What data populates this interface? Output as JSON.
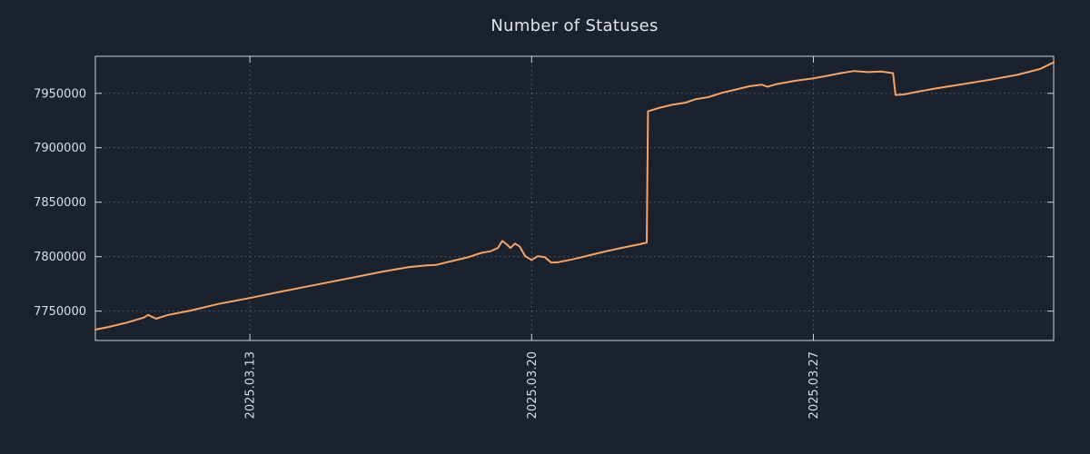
{
  "chart_data": {
    "type": "line",
    "title": "Number of Statuses",
    "background": "#1b222e",
    "text_color": "#d9dee5",
    "grid_color": "#9aa3ad",
    "border_color": "#ccd2da",
    "legend": "none",
    "grid": "dotted",
    "x_range": [
      0,
      23.81
    ],
    "y_range": [
      7723000,
      7984000
    ],
    "x_ticks": [
      {
        "label": "2025.03.13",
        "x": 3.84
      },
      {
        "label": "2025.03.20",
        "x": 10.84
      },
      {
        "label": "2025.03.27",
        "x": 17.84
      }
    ],
    "y_ticks": [
      {
        "label": "7750000",
        "value": 7750000
      },
      {
        "label": "7800000",
        "value": 7800000
      },
      {
        "label": "7850000",
        "value": 7850000
      },
      {
        "label": "7900000",
        "value": 7900000
      },
      {
        "label": "7950000",
        "value": 7950000
      }
    ],
    "series": [
      {
        "name": "Number of Statuses",
        "color": "#f2a46a",
        "points": [
          [
            0.0,
            7733000
          ],
          [
            0.34,
            7735500
          ],
          [
            0.79,
            7739500
          ],
          [
            1.2,
            7744000
          ],
          [
            1.31,
            7746500
          ],
          [
            1.51,
            7743000
          ],
          [
            1.81,
            7746500
          ],
          [
            2.37,
            7750500
          ],
          [
            3.05,
            7756500
          ],
          [
            3.84,
            7762000
          ],
          [
            4.63,
            7768000
          ],
          [
            5.53,
            7774500
          ],
          [
            6.43,
            7781000
          ],
          [
            7.11,
            7786000
          ],
          [
            7.79,
            7790500
          ],
          [
            8.24,
            7792000
          ],
          [
            8.47,
            7792500
          ],
          [
            8.92,
            7796500
          ],
          [
            9.26,
            7799500
          ],
          [
            9.59,
            7803500
          ],
          [
            9.82,
            7805000
          ],
          [
            10.0,
            7808000
          ],
          [
            10.11,
            7814500
          ],
          [
            10.23,
            7811000
          ],
          [
            10.31,
            7808000
          ],
          [
            10.43,
            7812000
          ],
          [
            10.54,
            7809500
          ],
          [
            10.68,
            7800500
          ],
          [
            10.84,
            7797000
          ],
          [
            10.99,
            7800500
          ],
          [
            11.17,
            7799500
          ],
          [
            11.33,
            7794500
          ],
          [
            11.51,
            7795000
          ],
          [
            11.85,
            7797500
          ],
          [
            12.3,
            7801500
          ],
          [
            12.75,
            7805500
          ],
          [
            13.2,
            7809000
          ],
          [
            13.54,
            7811500
          ],
          [
            13.7,
            7813000
          ],
          [
            13.73,
            7933500
          ],
          [
            13.99,
            7936500
          ],
          [
            14.33,
            7939500
          ],
          [
            14.67,
            7941500
          ],
          [
            14.9,
            7944500
          ],
          [
            15.23,
            7946500
          ],
          [
            15.57,
            7950500
          ],
          [
            15.91,
            7953500
          ],
          [
            16.25,
            7956500
          ],
          [
            16.55,
            7958000
          ],
          [
            16.7,
            7956000
          ],
          [
            16.93,
            7958500
          ],
          [
            17.38,
            7961500
          ],
          [
            17.79,
            7963500
          ],
          [
            18.17,
            7966000
          ],
          [
            18.51,
            7968500
          ],
          [
            18.85,
            7970500
          ],
          [
            19.19,
            7969500
          ],
          [
            19.53,
            7970000
          ],
          [
            19.82,
            7968500
          ],
          [
            19.88,
            7948500
          ],
          [
            20.09,
            7949000
          ],
          [
            20.43,
            7951500
          ],
          [
            20.88,
            7954500
          ],
          [
            21.56,
            7958500
          ],
          [
            22.23,
            7962500
          ],
          [
            22.91,
            7967000
          ],
          [
            23.48,
            7972500
          ],
          [
            23.81,
            7978500
          ]
        ]
      }
    ]
  }
}
